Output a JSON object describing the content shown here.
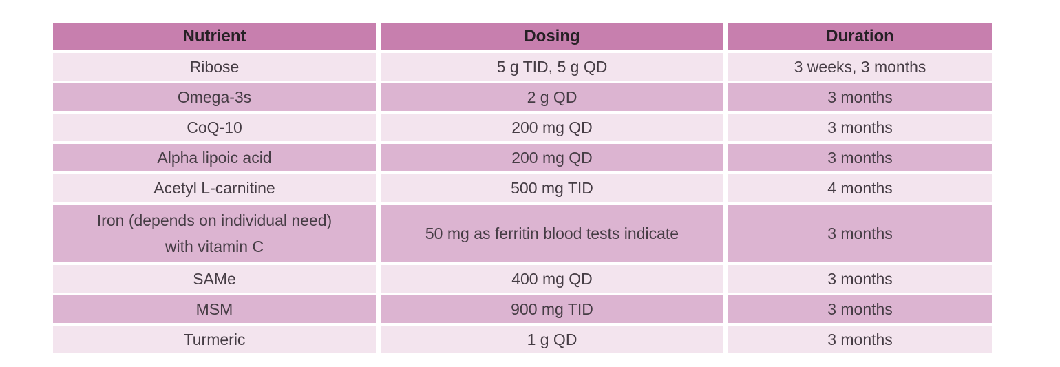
{
  "colors": {
    "header_bg": "#c77fae",
    "header_text": "#262025",
    "row_light": "#f3e4ee",
    "row_dark": "#dcb4d1",
    "text_color": "#453c44",
    "page_bg": "#ffffff"
  },
  "table": {
    "headers": {
      "nutrient": "Nutrient",
      "dosing": "Dosing",
      "duration": "Duration"
    },
    "rows": [
      {
        "nutrient": "Ribose",
        "dosing": "5 g TID, 5 g QD",
        "duration": "3 weeks, 3 months"
      },
      {
        "nutrient": "Omega-3s",
        "dosing": "2 g QD",
        "duration": "3 months"
      },
      {
        "nutrient": "CoQ-10",
        "dosing": "200 mg QD",
        "duration": "3 months"
      },
      {
        "nutrient": "Alpha lipoic acid",
        "dosing": "200 mg QD",
        "duration": "3 months"
      },
      {
        "nutrient": "Acetyl L-carnitine",
        "dosing": "500 mg TID",
        "duration": "4 months"
      },
      {
        "nutrient": "Iron (depends on individual need)",
        "nutrient_line2": "with vitamin C",
        "dosing": "50 mg as ferritin blood tests indicate",
        "duration": "3 months"
      },
      {
        "nutrient": "SAMe",
        "dosing": "400 mg QD",
        "duration": "3 months"
      },
      {
        "nutrient": "MSM",
        "dosing": "900 mg TID",
        "duration": "3 months"
      },
      {
        "nutrient": "Turmeric",
        "dosing": "1 g QD",
        "duration": "3 months"
      }
    ]
  }
}
